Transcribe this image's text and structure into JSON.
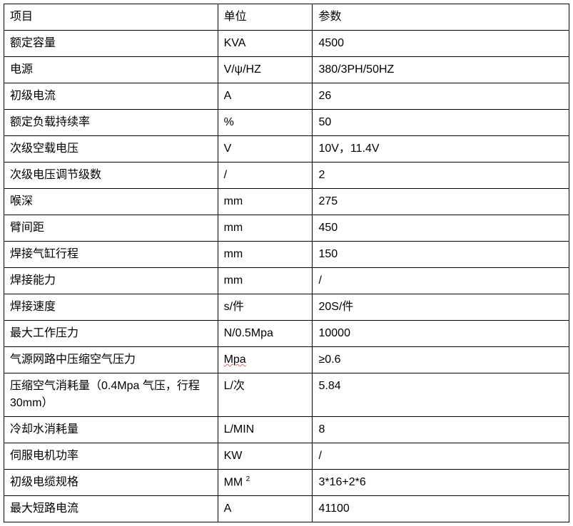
{
  "table": {
    "headers": {
      "item": "项目",
      "unit": "单位",
      "param": "参数"
    },
    "rows": [
      {
        "item": "额定容量",
        "unit": "KVA",
        "param": "4500"
      },
      {
        "item": "电源",
        "unit": "V/ψ/HZ",
        "param": "380/3PH/50HZ"
      },
      {
        "item": "初级电流",
        "unit": "A",
        "param": "26"
      },
      {
        "item": "额定负载持续率",
        "unit": "%",
        "param": "50"
      },
      {
        "item": "次级空载电压",
        "unit": "V",
        "param": "10V，11.4V"
      },
      {
        "item": "次级电压调节级数",
        "unit": "/",
        "param": "2"
      },
      {
        "item": "喉深",
        "unit": "mm",
        "param": "275"
      },
      {
        "item": "臂间距",
        "unit": "mm",
        "param": "450"
      },
      {
        "item": "焊接气缸行程",
        "unit": "mm",
        "param": "150"
      },
      {
        "item": "焊接能力",
        "unit": "mm",
        "param": "/"
      },
      {
        "item": "焊接速度",
        "unit": "s/件",
        "param": "20S/件"
      },
      {
        "item": "最大工作压力",
        "unit": "N/0.5Mpa",
        "param": "10000"
      },
      {
        "item": "气源网路中压缩空气压力",
        "unit": "Mpa",
        "param": "≥0.6",
        "unit_spellcheck": true
      },
      {
        "item": "压缩空气消耗量（0.4Mpa 气压，行程 30mm）",
        "unit": "L/次",
        "param": "5.84"
      },
      {
        "item": "冷却水消耗量",
        "unit": "L/MIN",
        "param": "8"
      },
      {
        "item": "伺服电机功率",
        "unit": "KW",
        "param": "/"
      },
      {
        "item": "初级电缆规格",
        "unit": "MM",
        "unit_sup": "2",
        "param": "3*16+2*6"
      },
      {
        "item": "最大短路电流",
        "unit": "A",
        "param": "41100"
      }
    ],
    "styling": {
      "border_color": "#000000",
      "background_color": "#ffffff",
      "text_color": "#000000",
      "font_size": 16,
      "col_widths": {
        "item": 300,
        "unit": 133,
        "param": 360
      },
      "spellcheck_color": "#e06666"
    }
  }
}
